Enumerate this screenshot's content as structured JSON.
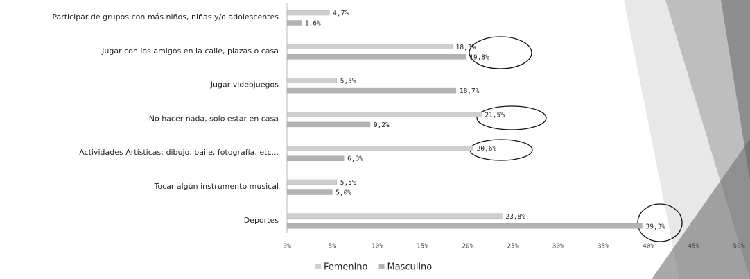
{
  "chart_data": {
    "type": "barh",
    "categories": [
      "Participar de grupos con más niños, niñas y/o adolescentes",
      "Jugar con los amigos en la calle, plazas o casa",
      "Jugar videojuegos",
      "No hacer nada, solo estar en casa",
      "Actividades Artísticas; dibujo, baile, fotografía, etc...",
      "Tocar algún instrumento musical",
      "Deportes"
    ],
    "series": [
      {
        "name": "Femenino",
        "color": "#cfcfcf",
        "values": [
          4.7,
          18.3,
          5.5,
          21.5,
          20.6,
          5.5,
          23.8
        ],
        "value_labels": [
          "4,7%",
          "18,3%",
          "5,5%",
          "21,5%",
          "20,6%",
          "5,5%",
          "23,8%"
        ]
      },
      {
        "name": "Masculino",
        "color": "#b3b3b3",
        "values": [
          1.6,
          19.8,
          18.7,
          9.2,
          6.3,
          5.0,
          39.3
        ],
        "value_labels": [
          "1,6%",
          "19,8%",
          "18,7%",
          "9,2%",
          "6,3%",
          "5,0%",
          "39,3%"
        ]
      }
    ],
    "xlim": [
      0,
      50
    ],
    "xticks": [
      {
        "value": 0,
        "label": "0%"
      },
      {
        "value": 5,
        "label": "5%"
      },
      {
        "value": 10,
        "label": "10%"
      },
      {
        "value": 15,
        "label": "15%"
      },
      {
        "value": 20,
        "label": "20%"
      },
      {
        "value": 25,
        "label": "25%"
      },
      {
        "value": 30,
        "label": "30%"
      },
      {
        "value": 35,
        "label": "35%"
      },
      {
        "value": 40,
        "label": "40%"
      },
      {
        "value": 45,
        "label": "45%"
      },
      {
        "value": 50,
        "label": "50%"
      }
    ],
    "legend": "bottom"
  }
}
